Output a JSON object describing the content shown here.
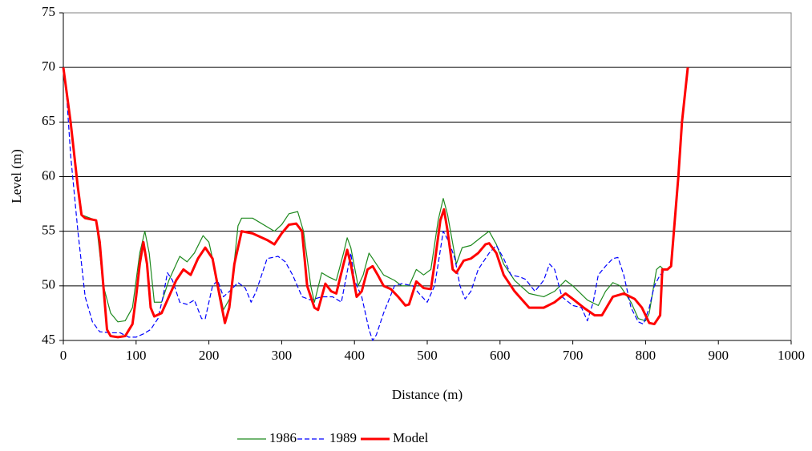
{
  "chart_data": {
    "type": "line",
    "xlabel": "Distance (m)",
    "ylabel": "Level (m)",
    "xlim": [
      0,
      1000
    ],
    "xticks": [
      0,
      100,
      200,
      300,
      400,
      500,
      600,
      700,
      800,
      900,
      1000
    ],
    "ylim": [
      45,
      75
    ],
    "yticks": [
      45,
      50,
      55,
      60,
      65,
      70,
      75
    ],
    "grid": true,
    "legend": "bottom",
    "series": [
      {
        "name": "1986",
        "color": "#1f8a1f",
        "linestyle": "solid",
        "linewidth": 1.2,
        "x": [
          0,
          10,
          20,
          25,
          45,
          55,
          65,
          75,
          85,
          95,
          105,
          112,
          118,
          125,
          135,
          145,
          160,
          170,
          180,
          192,
          200,
          210,
          220,
          230,
          240,
          245,
          260,
          290,
          300,
          310,
          322,
          330,
          340,
          345,
          355,
          365,
          375,
          385,
          390,
          395,
          405,
          412,
          420,
          430,
          440,
          455,
          465,
          475,
          485,
          495,
          505,
          515,
          522,
          528,
          540,
          548,
          560,
          575,
          585,
          595,
          605,
          620,
          640,
          660,
          675,
          690,
          700,
          720,
          735,
          745,
          755,
          765,
          780,
          790,
          800,
          805,
          815,
          820,
          825
        ],
        "values": [
          70,
          65,
          59,
          56.5,
          56,
          50,
          47.5,
          46.7,
          46.8,
          48,
          53,
          55,
          53,
          48.5,
          48.5,
          50.5,
          52.7,
          52.2,
          53,
          54.6,
          54,
          51,
          47.8,
          49,
          55.5,
          56.2,
          56.2,
          55,
          55.6,
          56.6,
          56.8,
          55,
          50,
          48.5,
          51.2,
          50.8,
          50.5,
          53,
          54.4,
          53.5,
          50,
          51,
          53,
          52,
          51,
          50.5,
          50,
          50,
          51.5,
          51,
          51.5,
          56,
          58,
          56.5,
          52,
          53.5,
          53.7,
          54.5,
          55,
          53.8,
          52,
          50.5,
          49.3,
          49,
          49.5,
          50.5,
          50,
          48.7,
          48.2,
          49.5,
          50.3,
          50,
          48.5,
          47,
          46.8,
          47.5,
          51.5,
          51.8,
          51.5
        ]
      },
      {
        "name": "1989",
        "color": "#0000ff",
        "linestyle": "dashed",
        "linewidth": 1.2,
        "x": [
          0,
          5,
          10,
          20,
          30,
          40,
          50,
          65,
          78,
          90,
          100,
          110,
          120,
          130,
          137,
          143,
          150,
          160,
          170,
          180,
          190,
          195,
          205,
          212,
          220,
          230,
          240,
          250,
          258,
          265,
          280,
          295,
          305,
          315,
          328,
          340,
          355,
          370,
          382,
          395,
          400,
          410,
          420,
          425,
          430,
          440,
          455,
          465,
          480,
          490,
          500,
          510,
          515,
          522,
          530,
          538,
          545,
          552,
          560,
          570,
          585,
          595,
          605,
          615,
          628,
          635,
          648,
          660,
          668,
          675,
          685,
          700,
          712,
          720,
          728,
          735,
          745,
          755,
          762,
          770,
          780,
          790,
          797,
          805,
          812,
          820,
          828
        ],
        "values": [
          70,
          67,
          62,
          55,
          49,
          46.7,
          45.8,
          45.7,
          45.7,
          45.3,
          45.3,
          45.6,
          46,
          47,
          49,
          51.2,
          50.5,
          48.5,
          48.3,
          48.7,
          47,
          47,
          50,
          50.5,
          49,
          49.6,
          50.3,
          49.8,
          48.5,
          49.5,
          52.5,
          52.7,
          52.2,
          51,
          49,
          48.7,
          49,
          49,
          48.5,
          53,
          50.5,
          49,
          46,
          45,
          45.5,
          47.5,
          50,
          50.2,
          50,
          49.2,
          48.5,
          50,
          52,
          55,
          54,
          52.5,
          50,
          48.8,
          49.5,
          51.5,
          53,
          53.7,
          52.5,
          51,
          50.8,
          50.6,
          49.5,
          50.5,
          52,
          51.5,
          49,
          48.2,
          48,
          46.8,
          48.5,
          51,
          51.8,
          52.5,
          52.6,
          51,
          48,
          46.7,
          46.5,
          48,
          50,
          51,
          51.5
        ]
      },
      {
        "name": "Model",
        "color": "#ff0000",
        "linestyle": "solid",
        "linewidth": 3,
        "x": [
          0,
          10,
          20,
          25,
          30,
          45,
          50,
          55,
          60,
          65,
          75,
          85,
          95,
          100,
          105,
          110,
          115,
          120,
          125,
          135,
          145,
          155,
          165,
          175,
          185,
          195,
          205,
          215,
          222,
          228,
          235,
          245,
          260,
          280,
          290,
          300,
          310,
          320,
          328,
          335,
          345,
          350,
          360,
          368,
          375,
          385,
          390,
          395,
          403,
          410,
          418,
          425,
          432,
          440,
          450,
          460,
          470,
          475,
          485,
          495,
          505,
          510,
          518,
          523,
          528,
          535,
          540,
          550,
          560,
          570,
          580,
          585,
          595,
          605,
          620,
          640,
          660,
          675,
          690,
          700,
          715,
          730,
          740,
          755,
          770,
          785,
          795,
          805,
          812,
          820,
          823,
          830,
          835,
          845,
          850,
          858
        ],
        "values": [
          70,
          65,
          59,
          56.5,
          56.2,
          56,
          54,
          50,
          46,
          45.4,
          45.3,
          45.4,
          46.5,
          49,
          52,
          54,
          52,
          48,
          47.2,
          47.5,
          49,
          50.5,
          51.5,
          51,
          52.5,
          53.5,
          52.5,
          49,
          46.6,
          48,
          52,
          55,
          54.8,
          54.2,
          53.8,
          54.8,
          55.6,
          55.7,
          55,
          50,
          48,
          47.8,
          50.2,
          49.5,
          49.3,
          52,
          53.3,
          52,
          49,
          49.5,
          51.5,
          51.8,
          51,
          50,
          49.7,
          49,
          48.2,
          48.3,
          50.4,
          49.8,
          49.7,
          52,
          56,
          57,
          55,
          51.5,
          51.2,
          52.3,
          52.5,
          53,
          53.8,
          53.9,
          53,
          51,
          49.5,
          48,
          48,
          48.5,
          49.3,
          48.8,
          48,
          47.3,
          47.3,
          49,
          49.3,
          48.8,
          48,
          46.6,
          46.5,
          47.3,
          51.5,
          51.5,
          51.8,
          60,
          65,
          70
        ]
      }
    ]
  }
}
